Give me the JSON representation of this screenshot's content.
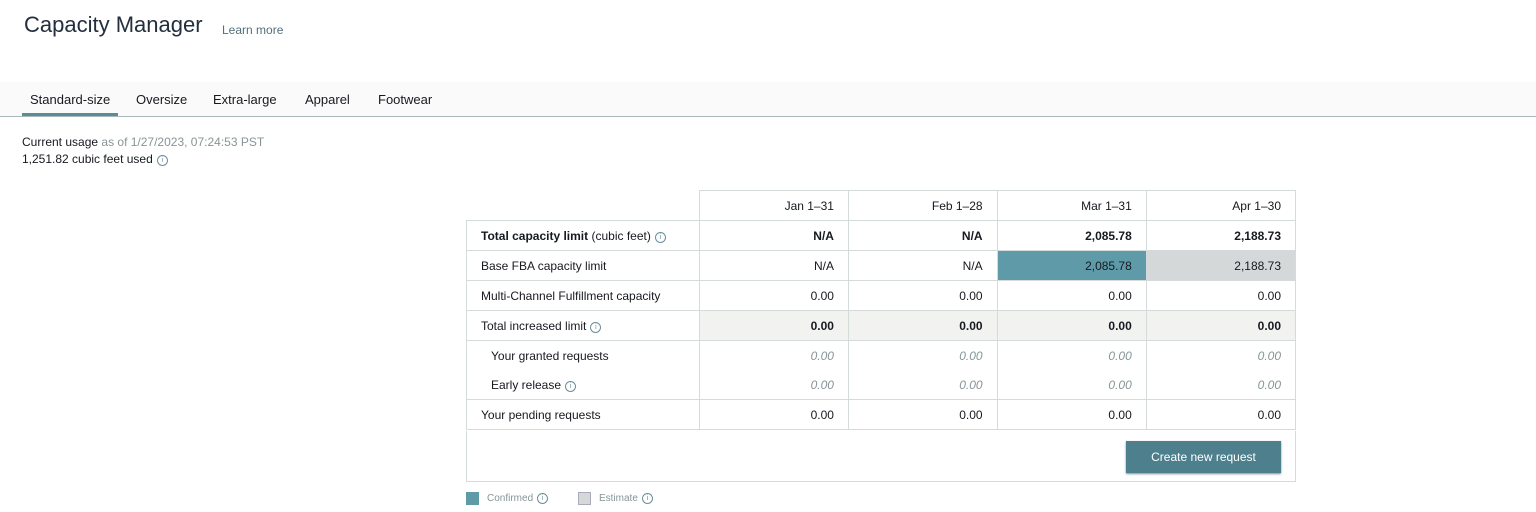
{
  "header": {
    "title": "Capacity Manager",
    "learn_more": "Learn more"
  },
  "tabs": [
    "Standard-size",
    "Oversize",
    "Extra-large",
    "Apparel",
    "Footwear"
  ],
  "usage": {
    "label": "Current usage",
    "as_of": "as of 1/27/2023, 07:24:53 PST",
    "used": "1,251.82 cubic feet used"
  },
  "table": {
    "columns": [
      "Jan 1–31",
      "Feb 1–28",
      "Mar 1–31",
      "Apr 1–30"
    ],
    "rows": [
      {
        "label": "Total capacity limit",
        "unit": "(cubic feet)",
        "values": [
          "N/A",
          "N/A",
          "2,085.78",
          "2,188.73"
        ]
      },
      {
        "label": "Base FBA capacity limit",
        "values": [
          "N/A",
          "N/A",
          "2,085.78",
          "2,188.73"
        ]
      },
      {
        "label": "Multi-Channel Fulfillment capacity",
        "values": [
          "0.00",
          "0.00",
          "0.00",
          "0.00"
        ]
      },
      {
        "label": "Total increased limit",
        "values": [
          "0.00",
          "0.00",
          "0.00",
          "0.00"
        ]
      },
      {
        "label": "Your granted requests",
        "values": [
          "0.00",
          "0.00",
          "0.00",
          "0.00"
        ]
      },
      {
        "label": "Early release",
        "values": [
          "0.00",
          "0.00",
          "0.00",
          "0.00"
        ]
      },
      {
        "label": "Your pending requests",
        "values": [
          "0.00",
          "0.00",
          "0.00",
          "0.00"
        ]
      }
    ]
  },
  "button": "Create new request",
  "legend": {
    "confirmed": "Confirmed",
    "estimate": "Estimate",
    "confirmed_color": "#5f9aa8",
    "estimate_color": "#d5d8d8"
  }
}
